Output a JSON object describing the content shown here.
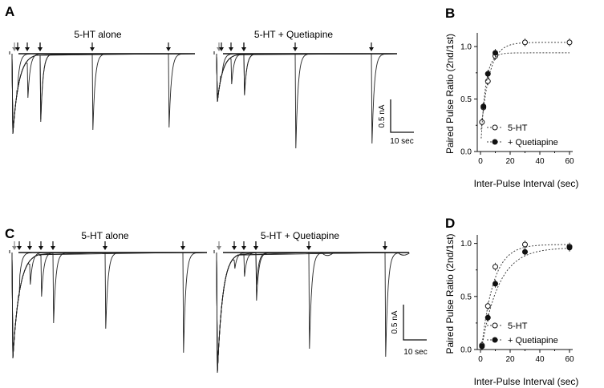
{
  "panels": {
    "A": {
      "letter": "A",
      "left_title": "5-HT alone",
      "right_title": "5-HT + Quetiapine",
      "scale_y": "0.5 nA",
      "scale_x": "10 sec",
      "left_test_pulses_sec": [
        1,
        3,
        5,
        10,
        30,
        60
      ],
      "right_test_pulses_sec": [
        1,
        3,
        5,
        10,
        30,
        60
      ]
    },
    "C": {
      "letter": "C",
      "left_title": "5-HT alone",
      "right_title": "5-HT + Quetiapine",
      "scale_y": "0.5 nA",
      "scale_x": "10 sec",
      "left_test_pulses_sec": [
        1,
        3,
        5,
        10,
        30,
        60
      ],
      "right_test_pulses_sec": [
        1,
        3,
        5,
        10,
        30,
        60
      ]
    }
  },
  "chart_data": [
    {
      "panel": "B",
      "type": "scatter",
      "xlabel": "Inter-Pulse Interval (sec)",
      "ylabel": "Paired Pulse Ratio (2nd/1st)",
      "xlim": [
        0,
        60
      ],
      "ylim": [
        0,
        1.1
      ],
      "xticks": [
        "0",
        "20",
        "40",
        "60"
      ],
      "yticks": [
        "0.0",
        "0.5",
        "1.0"
      ],
      "legend_position": "bottom-right",
      "series": [
        {
          "name": "5-HT",
          "marker": "open-circle",
          "x": [
            1,
            2,
            5,
            10,
            30,
            60
          ],
          "y": [
            0.28,
            0.42,
            0.67,
            0.91,
            1.04,
            1.04
          ],
          "fit": "dotted"
        },
        {
          "name": "+ Quetiapine",
          "marker": "filled-circle",
          "x": [
            2,
            5,
            10
          ],
          "y": [
            0.43,
            0.74,
            0.94
          ],
          "fit": "dotted"
        }
      ]
    },
    {
      "panel": "D",
      "type": "scatter",
      "xlabel": "Inter-Pulse Interval (sec)",
      "ylabel": "Paired Pulse Ratio (2nd/1st)",
      "xlim": [
        0,
        60
      ],
      "ylim": [
        0,
        1.05
      ],
      "xticks": [
        "0",
        "20",
        "40",
        "60"
      ],
      "yticks": [
        "0.0",
        "0.5",
        "1.0"
      ],
      "legend_position": "bottom-right",
      "series": [
        {
          "name": "5-HT",
          "marker": "open-circle",
          "x": [
            1,
            5,
            10,
            30,
            60
          ],
          "y": [
            0.04,
            0.41,
            0.78,
            0.99,
            0.97
          ],
          "fit": "dotted"
        },
        {
          "name": "+ Quetiapine",
          "marker": "filled-circle",
          "x": [
            1,
            5,
            10,
            30,
            60
          ],
          "y": [
            0.03,
            0.3,
            0.62,
            0.92,
            0.96
          ],
          "fit": "dotted"
        }
      ]
    }
  ],
  "panel_letters": {
    "B": "B",
    "D": "D"
  }
}
